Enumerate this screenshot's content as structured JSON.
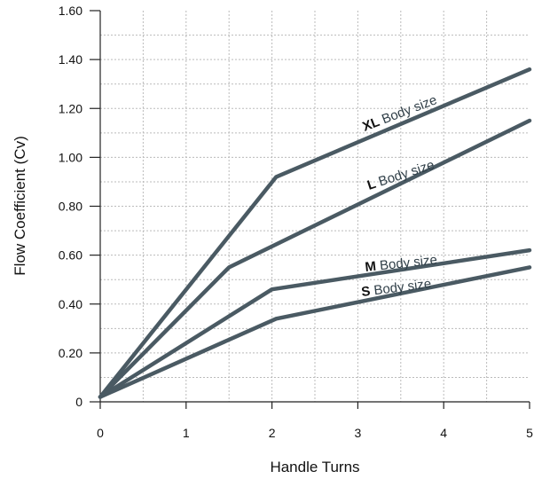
{
  "chart_data": {
    "type": "line",
    "xlabel": "Handle Turns",
    "ylabel": "Flow Coefficient (Cv)",
    "xlim": [
      0,
      5
    ],
    "ylim": [
      0,
      1.6
    ],
    "x_ticks": [
      "0",
      "1",
      "2",
      "3",
      "4",
      "5"
    ],
    "y_ticks": [
      "0",
      "0.20",
      "0.40",
      "0.60",
      "0.80",
      "1.00",
      "1.20",
      "1.40",
      "1.60"
    ],
    "grid": "dotted",
    "colors": {
      "line": "#4a5a63",
      "grid": "#bbbbbb",
      "axis": "#222222"
    },
    "series": [
      {
        "name_bold": "XL",
        "name_rest": " Body size",
        "points": [
          [
            0,
            0.02
          ],
          [
            2.05,
            0.92
          ],
          [
            5,
            1.36
          ]
        ]
      },
      {
        "name_bold": "L",
        "name_rest": " Body size",
        "points": [
          [
            0,
            0.02
          ],
          [
            1.5,
            0.55
          ],
          [
            5,
            1.15
          ]
        ]
      },
      {
        "name_bold": "M",
        "name_rest": " Body size",
        "points": [
          [
            0,
            0.02
          ],
          [
            2,
            0.46
          ],
          [
            5,
            0.62
          ]
        ]
      },
      {
        "name_bold": "S",
        "name_rest": " Body size",
        "points": [
          [
            0,
            0.02
          ],
          [
            2.05,
            0.34
          ],
          [
            5,
            0.55
          ]
        ]
      }
    ]
  }
}
